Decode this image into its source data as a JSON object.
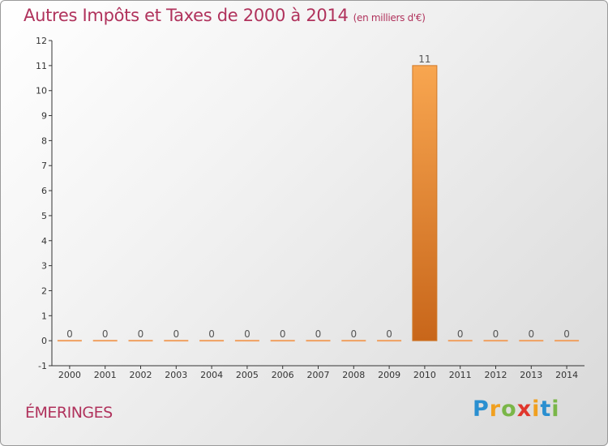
{
  "header": {
    "title": "Autres Impôts et Taxes de 2000 à 2014",
    "unit": "(en milliers d'€)"
  },
  "commune": "ÉMERINGES",
  "logo": {
    "letters": [
      {
        "ch": "P",
        "color": "#2a8fd0"
      },
      {
        "ch": "r",
        "color": "#f0a020"
      },
      {
        "ch": "o",
        "color": "#7ab648"
      },
      {
        "ch": "x",
        "color": "#e0362c"
      },
      {
        "ch": "i",
        "color": "#f0a020"
      },
      {
        "ch": "t",
        "color": "#2a8fd0"
      },
      {
        "ch": "i",
        "color": "#7ab648"
      }
    ]
  },
  "colors": {
    "bar_top": "#f8a650",
    "bar_bottom": "#c8661a",
    "title": "#b0325c"
  },
  "chart_data": {
    "type": "bar",
    "title": "Autres Impôts et Taxes de 2000 à 2014",
    "xlabel": "",
    "ylabel": "",
    "categories": [
      "2000",
      "2001",
      "2002",
      "2003",
      "2004",
      "2005",
      "2006",
      "2007",
      "2008",
      "2009",
      "2010",
      "2011",
      "2012",
      "2013",
      "2014"
    ],
    "values": [
      0,
      0,
      0,
      0,
      0,
      0,
      0,
      0,
      0,
      0,
      11,
      0,
      0,
      0,
      0
    ],
    "data_labels": [
      "0",
      "0",
      "0",
      "0",
      "0",
      "0",
      "0",
      "0",
      "0",
      "0",
      "11",
      "0",
      "0",
      "0",
      "0"
    ],
    "ylim": [
      -1,
      12
    ],
    "yticks": [
      -1,
      0,
      1,
      2,
      3,
      4,
      5,
      6,
      7,
      8,
      9,
      10,
      11,
      12
    ],
    "grid": false
  }
}
